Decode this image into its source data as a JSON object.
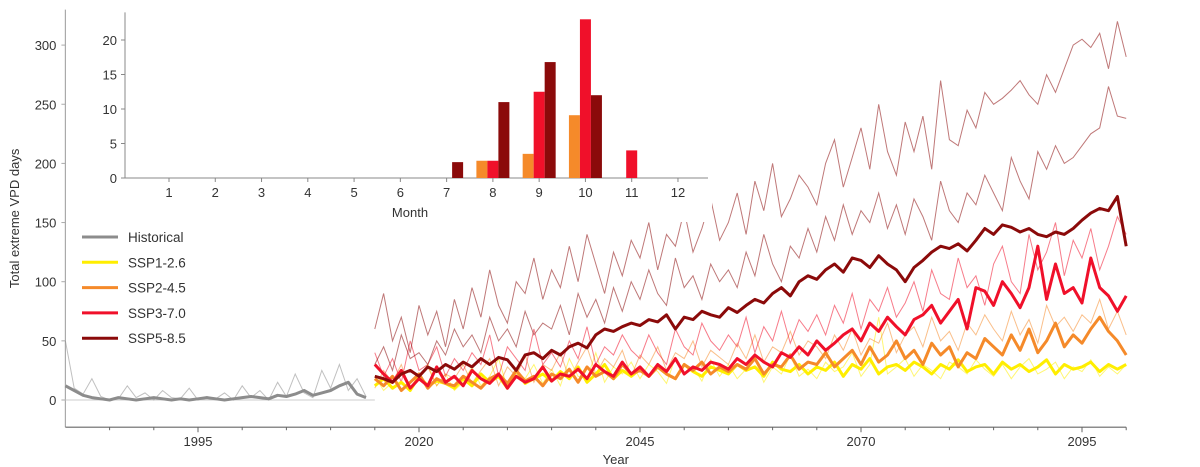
{
  "chart_data": [
    {
      "type": "line",
      "xlabel": "Year",
      "ylabel": "Total extreme VPD days",
      "xlim": [
        1980,
        2100
      ],
      "ylim": [
        -23,
        330
      ],
      "xticks": [
        1995,
        2020,
        2045,
        2070,
        2095
      ],
      "yticks": [
        0,
        50,
        100,
        150,
        200,
        250,
        300
      ],
      "grid": false,
      "legend_placement": "middle-left",
      "series": [
        {
          "name": "Historical",
          "color": "#8c8c8c",
          "start_year": 1980,
          "mean": [
            12,
            8,
            4,
            2,
            1,
            0,
            2,
            1,
            0,
            1,
            2,
            1,
            0,
            1,
            0,
            1,
            2,
            1,
            0,
            1,
            2,
            3,
            2,
            1,
            4,
            3,
            5,
            8,
            4,
            6,
            8,
            12,
            15,
            5,
            2
          ],
          "members": [
            [
              50,
              10,
              5,
              18,
              3,
              0,
              1,
              12,
              2,
              6,
              0,
              8,
              2,
              1,
              10,
              0,
              3,
              1,
              6,
              0,
              12,
              2,
              8,
              0,
              15,
              3,
              22,
              6,
              2,
              25,
              10,
              30,
              8,
              18,
              3
            ]
          ]
        },
        {
          "name": "SSP1-2.6",
          "color": "#ffee00",
          "start_year": 2015,
          "mean": [
            12,
            18,
            10,
            15,
            8,
            20,
            12,
            16,
            14,
            10,
            18,
            12,
            22,
            15,
            20,
            10,
            25,
            14,
            18,
            22,
            16,
            24,
            18,
            28,
            15,
            22,
            30,
            18,
            25,
            20,
            26,
            20,
            28,
            22,
            18,
            30,
            24,
            20,
            28,
            25,
            22,
            30,
            25,
            28,
            20,
            32,
            26,
            24,
            30,
            22,
            28,
            25,
            32,
            20,
            30,
            26,
            35,
            22,
            28,
            30,
            25,
            32,
            28,
            22,
            30,
            26,
            34,
            24,
            28,
            30,
            22,
            32,
            26,
            30,
            24,
            28,
            34,
            22,
            30,
            26,
            28,
            32,
            24,
            30,
            26,
            30
          ],
          "members": [
            [
              20,
              8,
              15,
              25,
              10,
              18,
              30,
              12,
              22,
              8,
              15,
              28,
              12,
              20,
              35,
              10,
              24,
              18,
              30,
              14,
              26,
              12,
              35,
              20,
              18,
              40,
              15,
              28,
              22,
              32,
              18,
              30,
              24,
              14,
              36,
              22,
              28,
              16,
              34,
              20,
              30,
              18,
              26,
              35,
              15,
              28,
              22,
              38,
              20,
              26,
              18,
              32,
              24,
              28,
              40,
              20,
              30,
              70,
              22,
              28,
              35,
              20,
              30,
              25,
              18,
              32,
              28,
              22,
              34,
              26,
              20,
              30,
              18,
              28,
              35,
              22,
              26,
              32,
              18,
              28,
              24,
              34,
              20,
              28,
              22,
              30
            ]
          ]
        },
        {
          "name": "SSP2-4.5",
          "color": "#f58a2a",
          "start_year": 2015,
          "mean": [
            18,
            12,
            20,
            8,
            15,
            22,
            10,
            18,
            14,
            12,
            20,
            15,
            10,
            18,
            22,
            14,
            25,
            16,
            20,
            12,
            22,
            18,
            26,
            15,
            28,
            20,
            24,
            18,
            30,
            22,
            25,
            20,
            28,
            22,
            18,
            30,
            25,
            32,
            22,
            28,
            24,
            30,
            26,
            35,
            22,
            30,
            28,
            38,
            26,
            32,
            30,
            40,
            28,
            35,
            42,
            30,
            45,
            32,
            38,
            50,
            35,
            42,
            30,
            48,
            38,
            45,
            28,
            40,
            35,
            52,
            45,
            38,
            55,
            42,
            60,
            40,
            50,
            65,
            45,
            55,
            48,
            60,
            70,
            58,
            50,
            38
          ],
          "members": [
            [
              10,
              25,
              15,
              30,
              8,
              20,
              28,
              12,
              22,
              18,
              30,
              14,
              25,
              35,
              12,
              28,
              20,
              38,
              15,
              30,
              25,
              40,
              18,
              32,
              45,
              22,
              35,
              28,
              42,
              20,
              38,
              30,
              45,
              25,
              40,
              35,
              50,
              28,
              42,
              36,
              30,
              48,
              35,
              55,
              32,
              45,
              40,
              58,
              38,
              50,
              45,
              35,
              55,
              42,
              60,
              38,
              52,
              48,
              65,
              40,
              55,
              62,
              45,
              70,
              50,
              58,
              42,
              65,
              55,
              72,
              60,
              50,
              75,
              55,
              68,
              48,
              80,
              62,
              70,
              58,
              72,
              65,
              85,
              60,
              75,
              55
            ]
          ]
        },
        {
          "name": "SSP3-7.0",
          "color": "#f0102a",
          "start_year": 2015,
          "mean": [
            30,
            22,
            15,
            25,
            10,
            18,
            12,
            28,
            15,
            20,
            12,
            25,
            18,
            14,
            22,
            10,
            20,
            15,
            18,
            28,
            16,
            22,
            20,
            26,
            18,
            30,
            24,
            20,
            32,
            22,
            28,
            20,
            30,
            24,
            35,
            22,
            28,
            25,
            32,
            30,
            26,
            35,
            30,
            38,
            32,
            28,
            40,
            36,
            45,
            38,
            50,
            42,
            48,
            55,
            60,
            50,
            65,
            58,
            70,
            62,
            55,
            68,
            72,
            80,
            65,
            75,
            85,
            60,
            95,
            92,
            80,
            100,
            90,
            78,
            95,
            130,
            85,
            115,
            90,
            95,
            82,
            120,
            95,
            88,
            75,
            88
          ],
          "members": [
            [
              40,
              20,
              35,
              15,
              50,
              25,
              30,
              45,
              20,
              35,
              25,
              40,
              30,
              55,
              20,
              45,
              35,
              25,
              60,
              30,
              40,
              28,
              50,
              35,
              62,
              30,
              45,
              38,
              55,
              42,
              35,
              55,
              40,
              30,
              60,
              45,
              38,
              65,
              50,
              42,
              55,
              45,
              70,
              40,
              62,
              50,
              75,
              48,
              68,
              58,
              72,
              55,
              80,
              65,
              90,
              60,
              85,
              75,
              95,
              70,
              82,
              100,
              75,
              110,
              90,
              85,
              120,
              95,
              105,
              80,
              115,
              130,
              100,
              90,
              140,
              110,
              125,
              150,
              105,
              135,
              120,
              145,
              110,
              130,
              155,
              140
            ]
          ]
        },
        {
          "name": "SSP5-8.5",
          "color": "#8b0a0a",
          "start_year": 2015,
          "mean": [
            20,
            18,
            15,
            22,
            25,
            20,
            28,
            24,
            30,
            26,
            32,
            28,
            35,
            30,
            36,
            34,
            25,
            38,
            40,
            35,
            42,
            38,
            45,
            48,
            44,
            55,
            60,
            58,
            62,
            65,
            63,
            68,
            66,
            72,
            60,
            70,
            68,
            75,
            72,
            70,
            78,
            74,
            80,
            85,
            82,
            90,
            95,
            88,
            100,
            105,
            102,
            110,
            115,
            108,
            120,
            118,
            112,
            122,
            115,
            110,
            100,
            112,
            118,
            125,
            130,
            128,
            132,
            126,
            135,
            145,
            140,
            148,
            146,
            142,
            145,
            140,
            138,
            142,
            140,
            145,
            152,
            158,
            162,
            160,
            172,
            130
          ],
          "members": [
            [
              60,
              90,
              50,
              70,
              40,
              80,
              55,
              75,
              45,
              85,
              60,
              95,
              70,
              110,
              80,
              65,
              100,
              90,
              120,
              85,
              110,
              95,
              130,
              100,
              140,
              115,
              90,
              125,
              105,
              135,
              120,
              150,
              110,
              140,
              130,
              160,
              125,
              145,
              170,
              135,
              150,
              175,
              140,
              185,
              160,
              200,
              155,
              170,
              190,
              180,
              165,
              200,
              220,
              180,
              205,
              230,
              195,
              250,
              210,
              190,
              235,
              210,
              240,
              195,
              270,
              220,
              215,
              245,
              230,
              260,
              250,
              255,
              262,
              270,
              258,
              250,
              275,
              260,
              280,
              300,
              305,
              298,
              310,
              280,
              320,
              290
            ],
            [
              30,
              45,
              25,
              55,
              35,
              40,
              30,
              50,
              38,
              60,
              45,
              55,
              40,
              70,
              50,
              60,
              45,
              75,
              55,
              65,
              60,
              80,
              55,
              90,
              70,
              85,
              65,
              95,
              75,
              100,
              85,
              110,
              90,
              80,
              120,
              95,
              105,
              85,
              115,
              100,
              110,
              95,
              125,
              105,
              140,
              115,
              100,
              130,
              120,
              145,
              125,
              155,
              135,
              165,
              140,
              160,
              150,
              175,
              145,
              165,
              140,
              170,
              155,
              135,
              185,
              160,
              150,
              175,
              165,
              190,
              175,
              160,
              205,
              185,
              170,
              210,
              195,
              215,
              200,
              205,
              215,
              225,
              230,
              265,
              240,
              238
            ]
          ]
        }
      ]
    },
    {
      "type": "bar",
      "xlabel": "Month",
      "ylabel": "",
      "categories": [
        "1",
        "2",
        "3",
        "4",
        "5",
        "6",
        "7",
        "8",
        "9",
        "10",
        "11",
        "12"
      ],
      "ylim": [
        0,
        24
      ],
      "yticks": [
        0,
        5,
        10,
        15,
        20
      ],
      "series": [
        {
          "color": "#f58a2a",
          "values": [
            0,
            0,
            0,
            0,
            0,
            0,
            0,
            2.5,
            3.5,
            9.1,
            0,
            0
          ]
        },
        {
          "color": "#f0102a",
          "values": [
            0,
            0,
            0,
            0,
            0,
            0,
            0,
            2.5,
            12.5,
            23,
            4,
            0
          ]
        },
        {
          "color": "#8b0a0a",
          "values": [
            0,
            0,
            0,
            0,
            0,
            0,
            2.3,
            11,
            16.8,
            12,
            0,
            0
          ]
        }
      ]
    }
  ]
}
